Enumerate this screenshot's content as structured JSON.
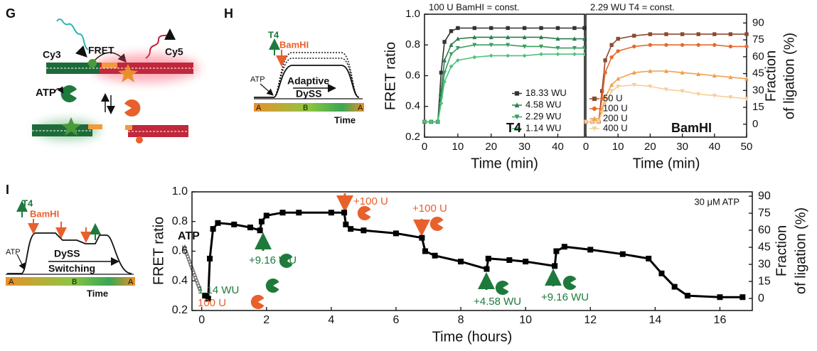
{
  "panels": {
    "G": "G",
    "H": "H",
    "I": "I"
  },
  "schematic_g": {
    "cy3": "Cy3",
    "fret": "FRET",
    "cy5": "Cy5",
    "atp": "ATP"
  },
  "schematic_h": {
    "t4": "T4",
    "bamhi": "BamHI",
    "atp": "ATP",
    "mode": "Adaptive",
    "dyss": "DySS",
    "zones": [
      "A",
      "B",
      "A"
    ],
    "time": "Time"
  },
  "schematic_i": {
    "t4": "T4",
    "bamhi": "BamHI",
    "atp": "ATP",
    "dyss": "DySS",
    "mode": "Switching",
    "zones": [
      "A",
      "B",
      "A"
    ],
    "time": "Time"
  },
  "chart_data": [
    {
      "type": "line",
      "title": "100 U BamHI = const.",
      "xlabel": "Time (min)",
      "ylabel": "FRET ratio",
      "xlim": [
        0,
        48
      ],
      "xticks": [
        0,
        10,
        20,
        30,
        40
      ],
      "ylim": [
        0.2,
        1
      ],
      "yticks": [
        0.2,
        0.4,
        0.6,
        0.8,
        {
          "value": 1,
          "label": "1.0"
        }
      ],
      "x": [
        0,
        2,
        4,
        5,
        6,
        8,
        10,
        15,
        20,
        25,
        30,
        35,
        40,
        45,
        48
      ],
      "series": [
        {
          "name": "18.33 WU",
          "color": "#333333",
          "marker": "square",
          "values": [
            0.3,
            0.3,
            0.3,
            0.62,
            0.82,
            0.89,
            0.91,
            0.91,
            0.91,
            0.91,
            0.91,
            0.91,
            0.91,
            0.91,
            0.91
          ]
        },
        {
          "name": "4.58 WU",
          "color": "#2f7d4e",
          "marker": "triangle-up",
          "values": [
            0.3,
            0.3,
            0.3,
            0.5,
            0.7,
            0.8,
            0.84,
            0.85,
            0.85,
            0.85,
            0.85,
            0.85,
            0.84,
            0.84,
            0.84
          ]
        },
        {
          "name": "2.29 WU",
          "color": "#3a9e5f",
          "marker": "triangle-down",
          "values": [
            0.3,
            0.3,
            0.3,
            0.45,
            0.62,
            0.74,
            0.78,
            0.8,
            0.8,
            0.8,
            0.79,
            0.79,
            0.78,
            0.78,
            0.78
          ]
        },
        {
          "name": "1.14 WU",
          "color": "#4cc27a",
          "marker": "diamond",
          "values": [
            0.3,
            0.3,
            0.3,
            0.42,
            0.56,
            0.66,
            0.7,
            0.72,
            0.73,
            0.73,
            0.73,
            0.74,
            0.74,
            0.74,
            0.74
          ]
        }
      ],
      "legend": "lower right",
      "annotations": [
        {
          "text": "T4",
          "color": "#111111"
        }
      ]
    },
    {
      "type": "line",
      "title": "2.29 WU T4 = const.",
      "xlabel": "Time (min)",
      "xlim": [
        0,
        50
      ],
      "xticks": [
        0,
        10,
        20,
        30,
        40,
        50
      ],
      "ylim": [
        0.2,
        1
      ],
      "y2lim": [
        -11.5,
        97.8
      ],
      "y2ticks": [
        0,
        15,
        30,
        45,
        60,
        75,
        90
      ],
      "y2label": [
        "Fraction",
        "of ligation (%)"
      ],
      "x": [
        0,
        2,
        4,
        5,
        6,
        8,
        10,
        15,
        20,
        25,
        30,
        35,
        40,
        45,
        50
      ],
      "series": [
        {
          "name": "50 U",
          "color": "#8c4a32",
          "marker": "square",
          "values": [
            0.3,
            0.3,
            0.3,
            0.5,
            0.7,
            0.8,
            0.84,
            0.86,
            0.87,
            0.87,
            0.87,
            0.87,
            0.87,
            0.87,
            0.87
          ]
        },
        {
          "name": "100 U",
          "color": "#e8692c",
          "marker": "circle",
          "values": [
            0.3,
            0.3,
            0.3,
            0.45,
            0.62,
            0.72,
            0.76,
            0.79,
            0.8,
            0.8,
            0.8,
            0.8,
            0.8,
            0.79,
            0.79
          ]
        },
        {
          "name": "200 U",
          "color": "#f0a050",
          "marker": "triangle-up",
          "values": [
            0.3,
            0.3,
            0.3,
            0.38,
            0.46,
            0.54,
            0.58,
            0.62,
            0.63,
            0.63,
            0.62,
            0.61,
            0.6,
            0.59,
            0.58
          ]
        },
        {
          "name": "400 U",
          "color": "#f5cf9a",
          "marker": "triangle-down",
          "values": [
            0.3,
            0.3,
            0.3,
            0.36,
            0.42,
            0.5,
            0.53,
            0.54,
            0.53,
            0.51,
            0.5,
            0.48,
            0.47,
            0.46,
            0.45
          ]
        }
      ],
      "legend": "lower left",
      "annotations": [
        {
          "text": "BamHI",
          "color": "#111111"
        }
      ]
    },
    {
      "type": "line",
      "xlabel": "Time (hours)",
      "ylabel": "FRET ratio",
      "xlim": [
        -0.3,
        17
      ],
      "xticks": [
        0,
        2,
        4,
        6,
        8,
        10,
        12,
        14,
        16
      ],
      "ylim": [
        0.2,
        1
      ],
      "yticks": [
        0.2,
        0.4,
        0.6,
        0.8,
        {
          "value": 1,
          "label": "1.0"
        }
      ],
      "y2lim": [
        -10.6,
        93.8
      ],
      "y2ticks": [
        0,
        15,
        30,
        45,
        60,
        75,
        90
      ],
      "y2label": [
        "Fraction",
        "of ligation (%)"
      ],
      "x": [
        0.1,
        0.2,
        0.25,
        0.35,
        0.5,
        1,
        1.5,
        1.8,
        1.85,
        2,
        2.5,
        3,
        4,
        4.4,
        4.45,
        4.6,
        5,
        6,
        6.8,
        6.9,
        7.2,
        8,
        8.8,
        8.85,
        9.5,
        10,
        10.9,
        10.95,
        11.2,
        12,
        13,
        13.8,
        14.2,
        14.6,
        15,
        16,
        16.7
      ],
      "series": [
        {
          "color": "#000000",
          "marker": "square",
          "values": [
            0.3,
            0.28,
            0.55,
            0.75,
            0.79,
            0.78,
            0.76,
            0.74,
            0.8,
            0.84,
            0.86,
            0.86,
            0.86,
            0.86,
            0.78,
            0.75,
            0.74,
            0.72,
            0.69,
            0.6,
            0.57,
            0.53,
            0.48,
            0.55,
            0.54,
            0.53,
            0.5,
            0.6,
            0.63,
            0.61,
            0.58,
            0.55,
            0.45,
            0.36,
            0.3,
            0.29,
            0.29
          ]
        }
      ],
      "annotations": [
        {
          "text": "30 μM ATP",
          "color": "#111111"
        },
        {
          "text": "+9.16 WU",
          "color": "#1e7a3c"
        },
        {
          "text": "+100 U",
          "color": "#e8602c"
        },
        {
          "text": "+100 U",
          "color": "#e8602c"
        },
        {
          "text": "+4.58 WU",
          "color": "#1e7a3c"
        },
        {
          "text": "+9.16 WU",
          "color": "#1e7a3c"
        },
        {
          "text": "1.14 WU",
          "color": "#1e7a3c"
        },
        {
          "text": "100 U",
          "color": "#e8602c"
        },
        {
          "text": "ATP",
          "color": "#111111"
        }
      ]
    }
  ]
}
